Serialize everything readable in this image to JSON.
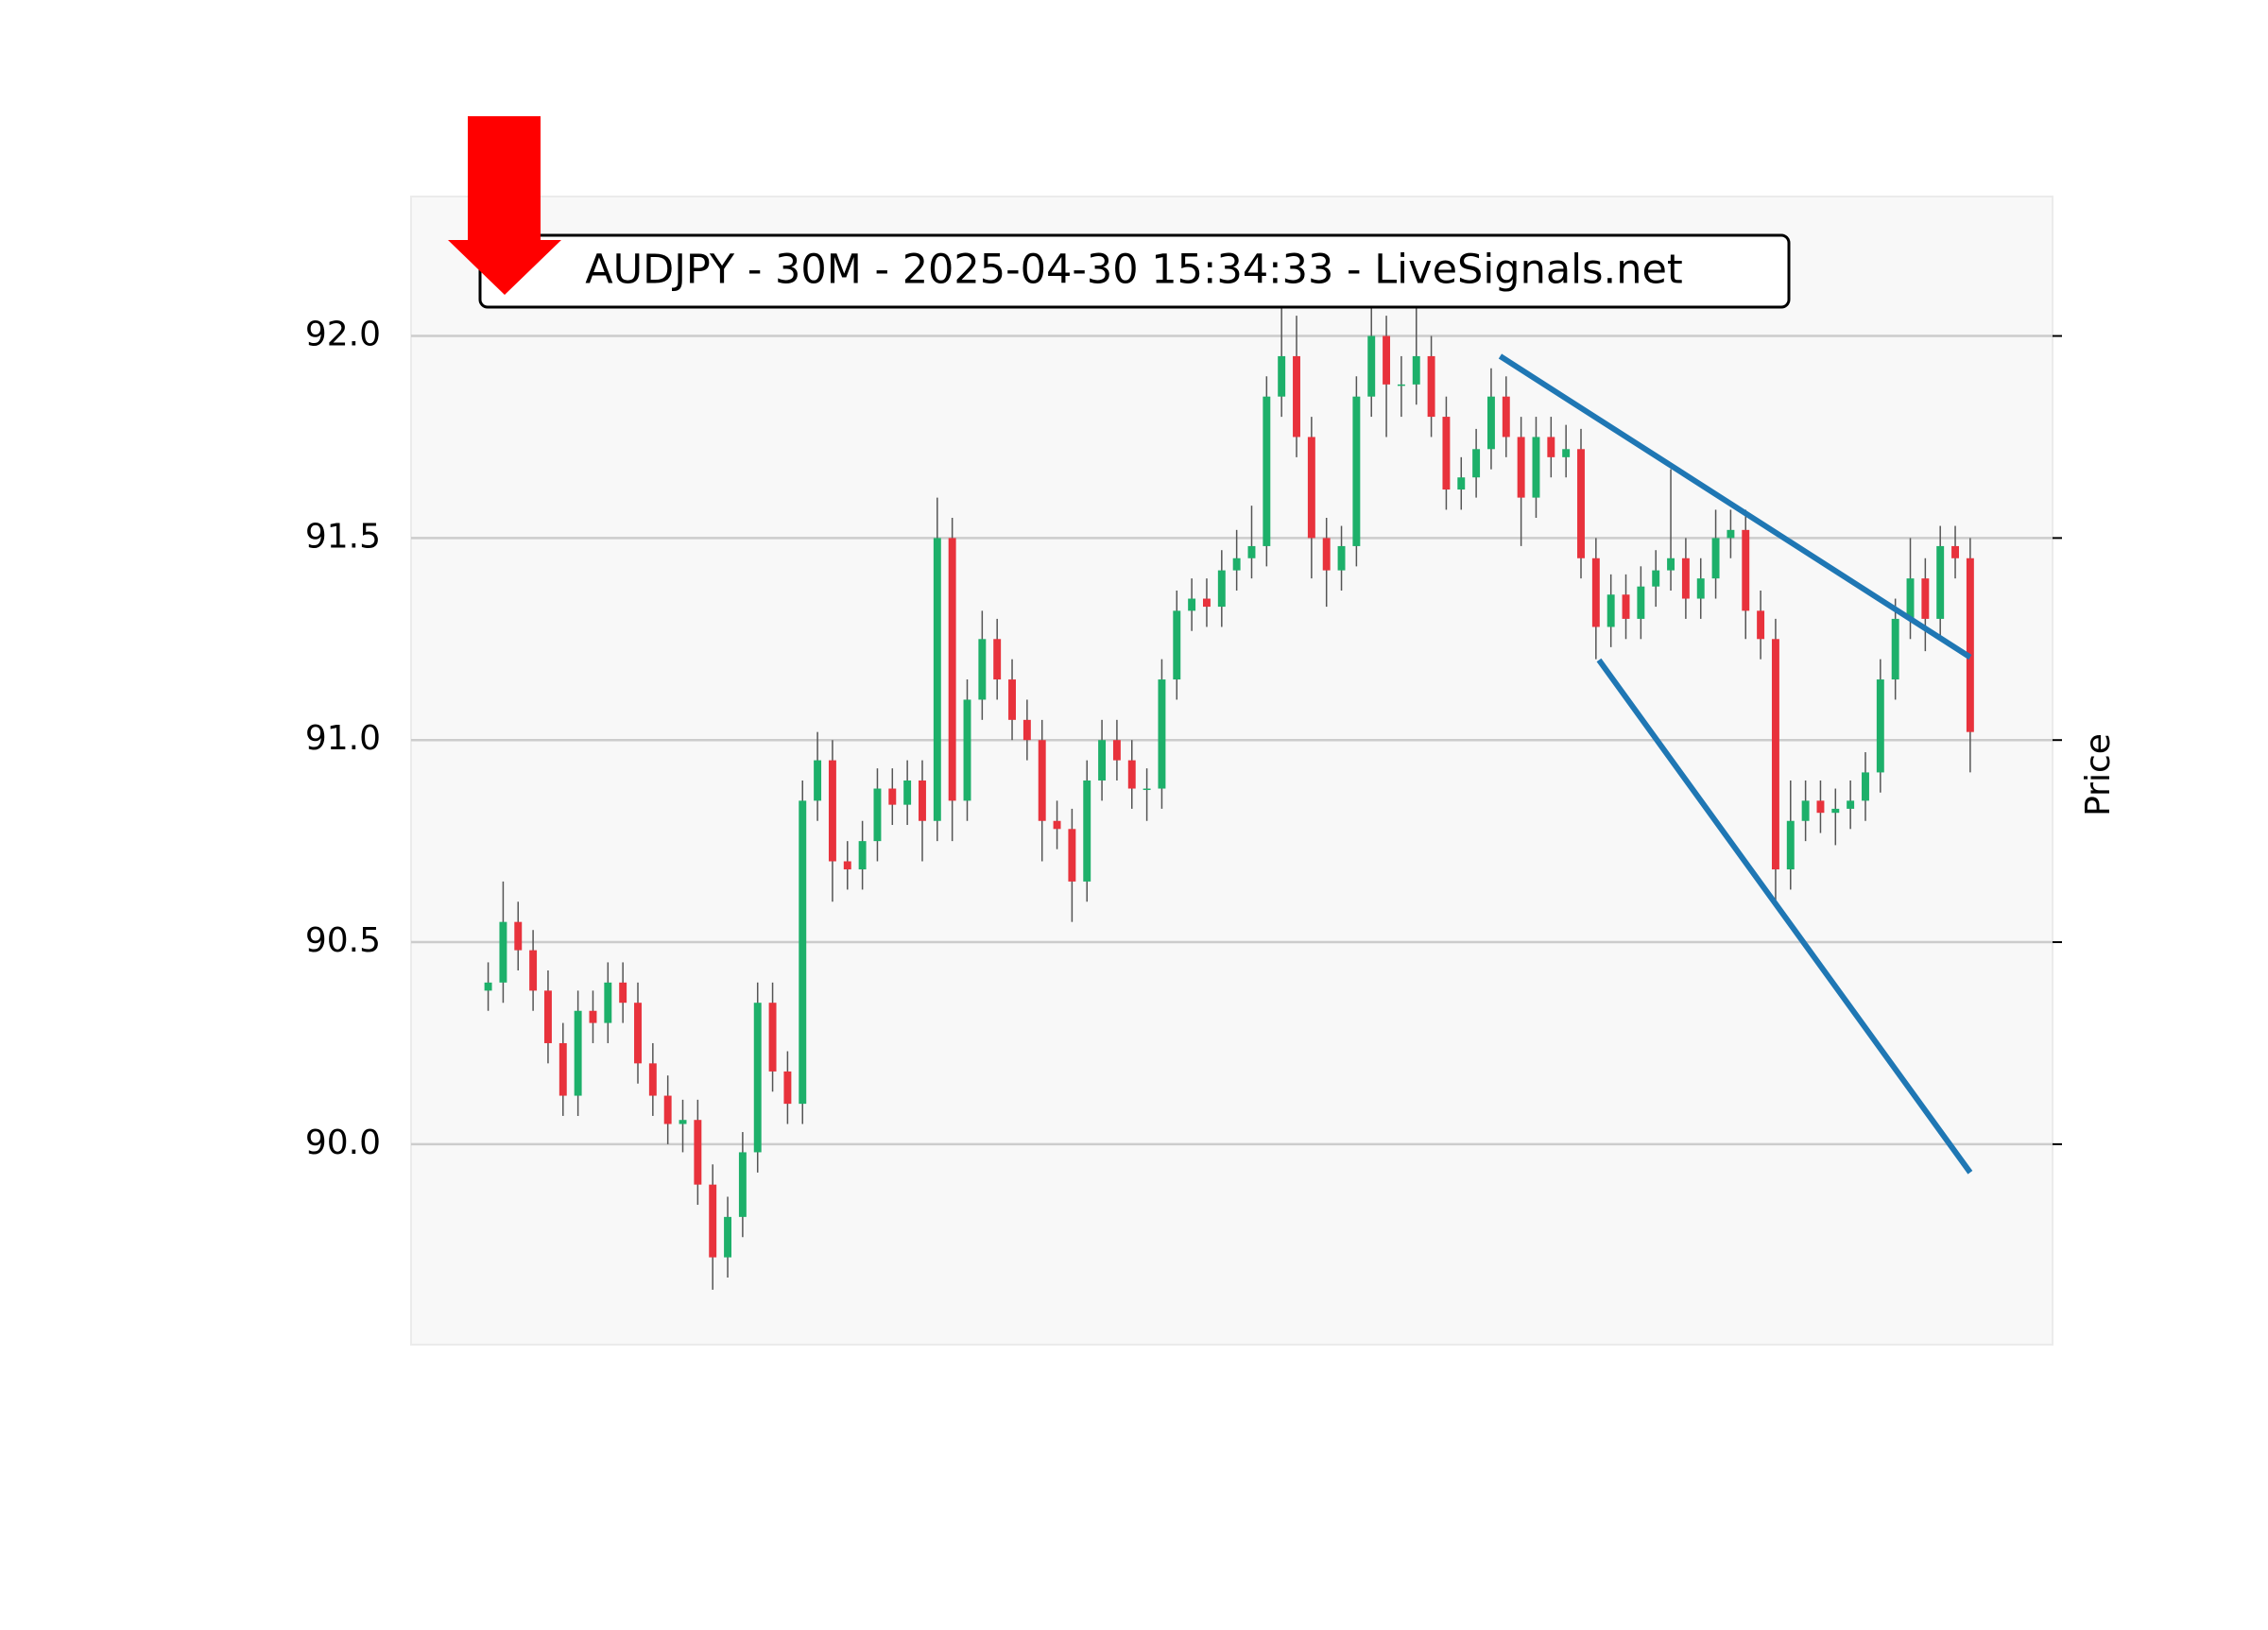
{
  "chart_data": {
    "type": "candlestick",
    "title": "AUDJPY - 30M - 2025-04-30 15:34:33 - LiveSignals.net",
    "y_label": "Price",
    "up_color": "#1db06a",
    "down_color": "#e8323c",
    "wick_color": "#555555",
    "grid": true,
    "xlim": [
      -5.15,
      104.5
    ],
    "ylim": [
      89.504,
      92.345
    ],
    "yticks": [
      {
        "value": 90,
        "label": "90.0"
      },
      {
        "value": 90.5,
        "label": "90.5"
      },
      {
        "value": 91,
        "label": "91.0"
      },
      {
        "value": 91.5,
        "label": "91.5"
      },
      {
        "value": 92,
        "label": "92.0"
      }
    ],
    "open": [
      90.38,
      90.4,
      90.55,
      90.48,
      90.38,
      90.25,
      90.12,
      90.33,
      90.3,
      90.4,
      90.35,
      90.2,
      90.12,
      90.05,
      90.06,
      89.9,
      89.72,
      89.82,
      89.98,
      90.35,
      90.18,
      90.1,
      90.85,
      90.95,
      90.7,
      90.68,
      90.75,
      90.88,
      90.84,
      90.9,
      90.8,
      91.5,
      90.85,
      91.1,
      91.25,
      91.15,
      91.05,
      91.0,
      90.8,
      90.78,
      90.65,
      90.9,
      91.0,
      90.95,
      90.88,
      90.88,
      91.15,
      91.32,
      91.35,
      91.33,
      91.42,
      91.45,
      91.48,
      91.85,
      91.95,
      91.75,
      91.5,
      91.42,
      91.48,
      91.85,
      92.0,
      91.88,
      91.88,
      91.95,
      91.8,
      91.62,
      91.65,
      91.72,
      91.85,
      91.75,
      91.6,
      91.75,
      91.7,
      91.72,
      91.45,
      91.28,
      91.36,
      91.3,
      91.38,
      91.42,
      91.45,
      91.35,
      91.4,
      91.5,
      91.52,
      91.32,
      91.25,
      90.68,
      90.8,
      90.85,
      90.82,
      90.83,
      90.85,
      90.92,
      91.15,
      91.3,
      91.4,
      91.3,
      91.48,
      91.45
    ],
    "high": [
      90.45,
      90.65,
      90.6,
      90.53,
      90.43,
      90.3,
      90.38,
      90.38,
      90.45,
      90.45,
      90.4,
      90.25,
      90.17,
      90.11,
      90.11,
      89.95,
      89.87,
      90.03,
      90.4,
      90.4,
      90.23,
      90.9,
      91.02,
      91.0,
      90.75,
      90.8,
      90.93,
      90.93,
      90.95,
      90.95,
      91.6,
      91.55,
      91.15,
      91.32,
      91.3,
      91.2,
      91.1,
      91.05,
      90.85,
      90.83,
      90.95,
      91.05,
      91.05,
      91.0,
      90.93,
      91.2,
      91.37,
      91.4,
      91.4,
      91.47,
      91.52,
      91.58,
      91.9,
      92.12,
      92.05,
      91.8,
      91.55,
      91.53,
      91.9,
      92.08,
      92.05,
      91.95,
      92.08,
      92.0,
      91.85,
      91.7,
      91.77,
      91.92,
      91.9,
      91.8,
      91.8,
      91.8,
      91.78,
      91.77,
      91.5,
      91.41,
      91.41,
      91.43,
      91.47,
      91.67,
      91.5,
      91.45,
      91.57,
      91.57,
      91.57,
      91.37,
      91.3,
      90.9,
      90.9,
      90.9,
      90.88,
      90.9,
      90.97,
      91.2,
      91.35,
      91.5,
      91.45,
      91.53,
      91.53,
      91.5
    ],
    "low": [
      90.33,
      90.35,
      90.43,
      90.33,
      90.2,
      90.07,
      90.07,
      90.25,
      90.25,
      90.3,
      90.15,
      90.07,
      90.0,
      89.98,
      89.85,
      89.64,
      89.67,
      89.77,
      89.93,
      90.13,
      90.05,
      90.05,
      90.8,
      90.6,
      90.63,
      90.63,
      90.7,
      90.79,
      90.79,
      90.7,
      90.75,
      90.75,
      90.8,
      91.05,
      91.1,
      91.0,
      90.95,
      90.7,
      90.73,
      90.55,
      90.6,
      90.85,
      90.9,
      90.83,
      90.8,
      90.83,
      91.1,
      91.27,
      91.28,
      91.28,
      91.37,
      91.4,
      91.43,
      91.8,
      91.7,
      91.4,
      91.33,
      91.37,
      91.43,
      91.8,
      91.75,
      91.8,
      91.83,
      91.75,
      91.57,
      91.57,
      91.6,
      91.67,
      91.7,
      91.48,
      91.55,
      91.65,
      91.65,
      91.4,
      91.2,
      91.23,
      91.25,
      91.25,
      91.33,
      91.37,
      91.3,
      91.3,
      91.35,
      91.45,
      91.25,
      91.2,
      90.6,
      90.63,
      90.75,
      90.77,
      90.74,
      90.78,
      90.8,
      90.87,
      91.1,
      91.25,
      91.22,
      91.25,
      91.4,
      90.92
    ],
    "close": [
      90.4,
      90.55,
      90.48,
      90.38,
      90.25,
      90.12,
      90.33,
      90.3,
      90.4,
      90.35,
      90.2,
      90.12,
      90.05,
      90.06,
      89.9,
      89.72,
      89.82,
      89.98,
      90.35,
      90.18,
      90.1,
      90.85,
      90.95,
      90.7,
      90.68,
      90.75,
      90.88,
      90.84,
      90.9,
      90.8,
      91.5,
      90.85,
      91.1,
      91.25,
      91.15,
      91.05,
      91.0,
      90.8,
      90.78,
      90.65,
      90.9,
      91.0,
      90.95,
      90.88,
      90.88,
      91.15,
      91.32,
      91.35,
      91.33,
      91.42,
      91.45,
      91.48,
      91.85,
      91.95,
      91.75,
      91.5,
      91.42,
      91.48,
      91.85,
      92.0,
      91.88,
      91.88,
      91.95,
      91.8,
      91.62,
      91.65,
      91.72,
      91.85,
      91.75,
      91.6,
      91.75,
      91.7,
      91.72,
      91.45,
      91.28,
      91.36,
      91.3,
      91.38,
      91.42,
      91.45,
      91.35,
      91.4,
      91.5,
      91.52,
      91.32,
      91.25,
      90.68,
      90.8,
      90.85,
      90.82,
      90.83,
      90.85,
      90.92,
      91.15,
      91.3,
      91.4,
      91.3,
      91.48,
      91.45,
      91.02
    ],
    "trendlines": [
      {
        "color": "#1f77b4",
        "start": [
          67.6,
          91.95
        ],
        "end": [
          99,
          91.205
        ]
      },
      {
        "color": "#1f77b4",
        "start": [
          74.2,
          91.198
        ],
        "end": [
          99,
          89.93
        ]
      }
    ]
  }
}
